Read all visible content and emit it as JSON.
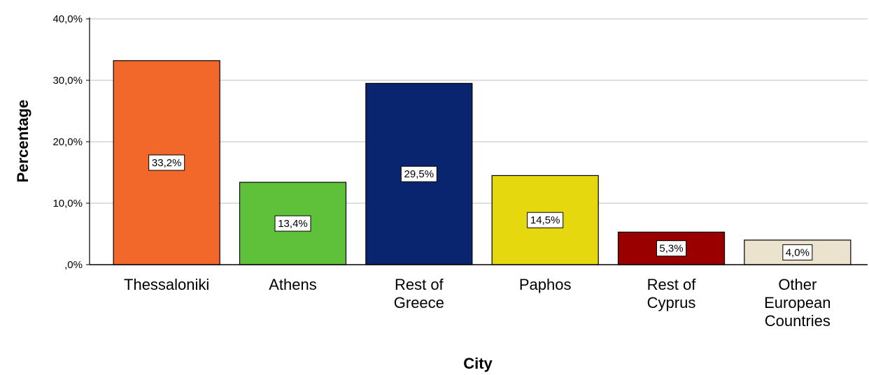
{
  "chart_data": {
    "type": "bar",
    "xlabel": "City",
    "ylabel": "Percentage",
    "ylim": [
      0,
      40
    ],
    "yticks": [
      0,
      10,
      20,
      30,
      40
    ],
    "ytick_labels": [
      ",0%",
      "10,0%",
      "20,0%",
      "30,0%",
      "40,0%"
    ],
    "grid": true,
    "legend": "none",
    "categories": [
      [
        "Thessaloniki"
      ],
      [
        "Athens"
      ],
      [
        "Rest of",
        "Greece"
      ],
      [
        "Paphos"
      ],
      [
        "Rest of",
        "Cyprus"
      ],
      [
        "Other",
        "European",
        "Countries"
      ]
    ],
    "values": [
      33.2,
      13.4,
      29.5,
      14.5,
      5.3,
      4.0
    ],
    "data_labels": [
      "33,2%",
      "13,4%",
      "29,5%",
      "14,5%",
      "5,3%",
      "4,0%"
    ],
    "colors": [
      "#f2672a",
      "#5fc13a",
      "#0a2570",
      "#e6d80e",
      "#9b0000",
      "#ece3cf"
    ]
  }
}
